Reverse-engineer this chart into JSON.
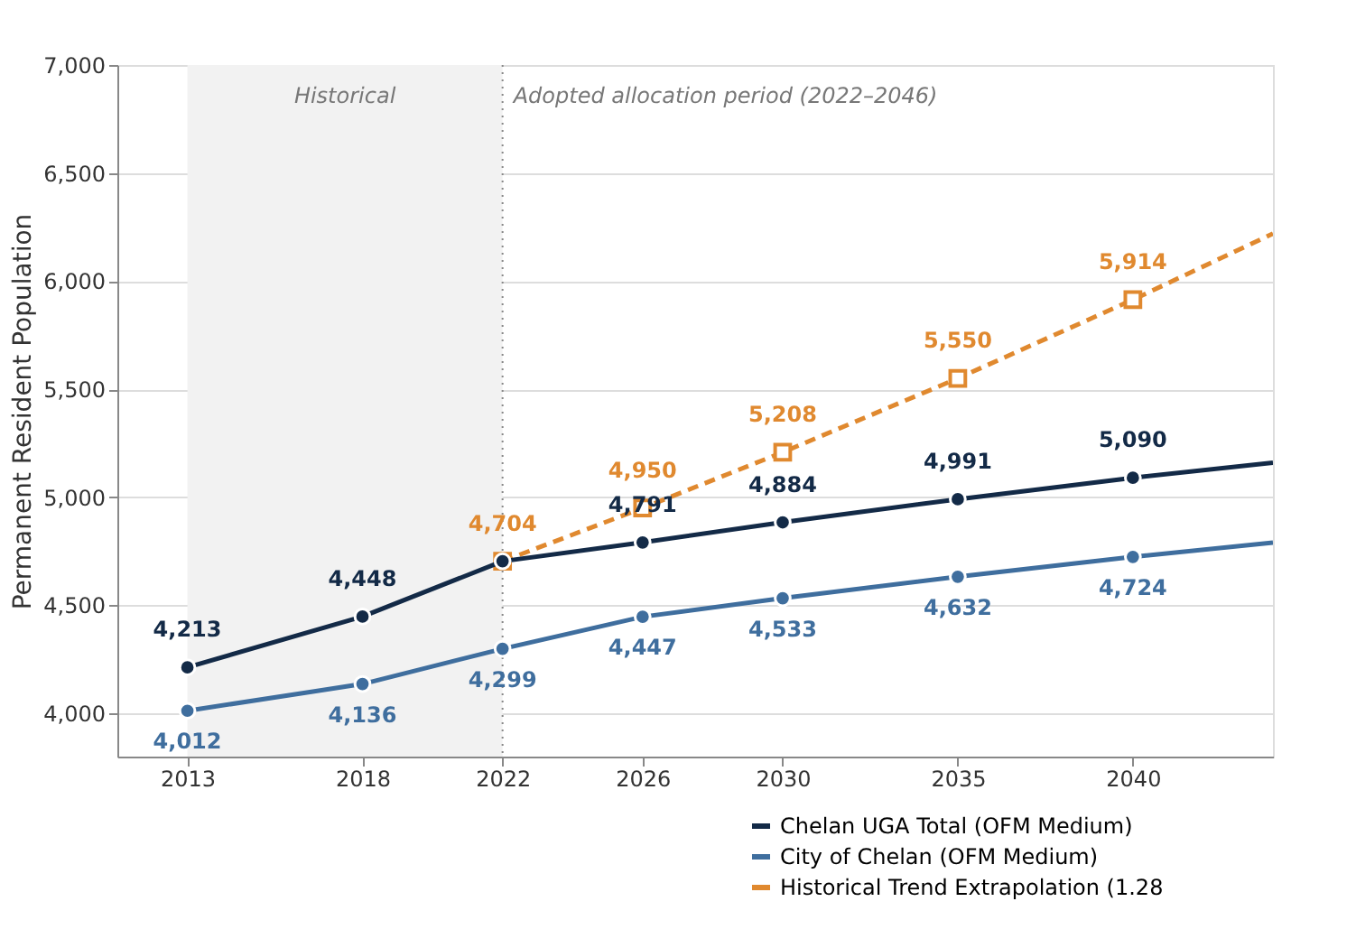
{
  "chart_data": {
    "type": "line",
    "ylabel": "Permanent Resident Population",
    "xlim": [
      2011,
      2044
    ],
    "xticks": [
      2013,
      2018,
      2022,
      2026,
      2030,
      2035,
      2040
    ],
    "ylim": [
      3800,
      7000
    ],
    "yticks": [
      {
        "value": 4000,
        "label": "4,000"
      },
      {
        "value": 4500,
        "label": "4,500"
      },
      {
        "value": 5000,
        "label": "5,000"
      },
      {
        "value": 5500,
        "label": "5,500"
      },
      {
        "value": 6000,
        "label": "6,000"
      },
      {
        "value": 6500,
        "label": "6,500"
      },
      {
        "value": 7000,
        "label": "7,000"
      }
    ],
    "grid": "y",
    "legend": "bottom right",
    "bands": [
      {
        "axis": "x",
        "from": 2013,
        "to": 2022,
        "label": "Historical",
        "color": "#f2f2f2"
      }
    ],
    "ref_lines": [
      {
        "axis": "x",
        "value": 2022,
        "label": "Adopted allocation period (2022–2046)",
        "line_style": "dotted",
        "color": "#888888"
      }
    ],
    "series": [
      {
        "name": "Historical Trend Extrapolation (1.28",
        "color": "#e0892f",
        "marker": "square",
        "line_style": "dashed",
        "x": [
          2022,
          2026,
          2030,
          2035,
          2040,
          2044
        ],
        "values": [
          4704,
          4950,
          5208,
          5550,
          5914,
          6220
        ],
        "value_labels": [
          "4,704",
          "4,950",
          "5,208",
          "5,550",
          "5,914",
          null
        ]
      },
      {
        "name": "Chelan UGA Total (OFM Medium)",
        "color": "#132a47",
        "marker": "circle",
        "line_style": "solid",
        "x": [
          2013,
          2018,
          2022,
          2026,
          2030,
          2035,
          2040,
          2044
        ],
        "values": [
          4213,
          4448,
          4704,
          4791,
          4884,
          4991,
          5090,
          5160
        ],
        "value_labels": [
          "4,213",
          "4,448",
          null,
          "4,791",
          "4,884",
          "4,991",
          "5,090",
          null
        ]
      },
      {
        "name": "City of Chelan (OFM Medium)",
        "color": "#3f6e9e",
        "marker": "circle",
        "line_style": "solid",
        "x": [
          2013,
          2018,
          2022,
          2026,
          2030,
          2035,
          2040,
          2044
        ],
        "values": [
          4012,
          4136,
          4299,
          4447,
          4533,
          4632,
          4724,
          4790
        ],
        "value_labels": [
          "4,012",
          "4,136",
          "4,299",
          "4,447",
          "4,533",
          "4,632",
          "4,724",
          null
        ]
      }
    ]
  }
}
